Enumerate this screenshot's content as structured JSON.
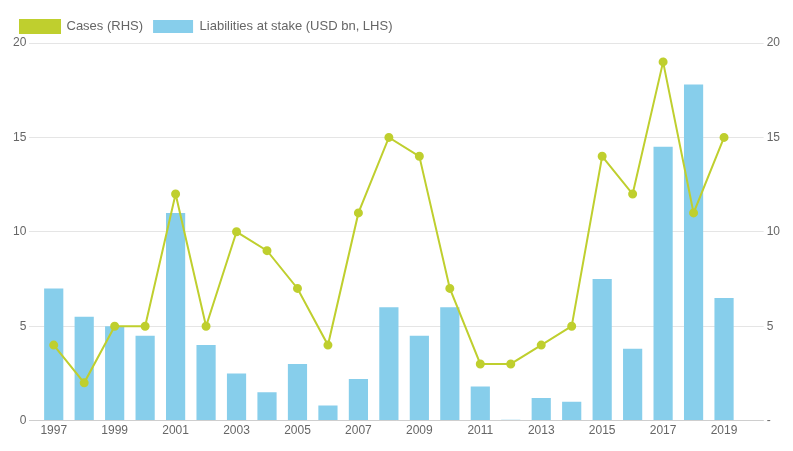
{
  "chart_data": {
    "type": "bar",
    "x": [
      1997,
      1998,
      1999,
      2000,
      2001,
      2002,
      2003,
      2004,
      2005,
      2006,
      2007,
      2008,
      2009,
      2010,
      2011,
      2012,
      2013,
      2014,
      2015,
      2016,
      2017,
      2018,
      2019
    ],
    "series": [
      {
        "name": "Liabilities at stake (USD bn, LHS)",
        "type": "bar",
        "color": "#87CEEB",
        "values": [
          7.0,
          5.5,
          5.0,
          4.5,
          11.0,
          4.0,
          2.5,
          1.5,
          3.0,
          0.8,
          2.2,
          6.0,
          4.5,
          6.0,
          1.8,
          0.05,
          1.2,
          1.0,
          7.5,
          3.8,
          14.5,
          17.8,
          6.5
        ]
      },
      {
        "name": "Cases (RHS)",
        "type": "line",
        "color": "#BFCF2E",
        "marker": "circle",
        "axis": "y2",
        "values": [
          4,
          2,
          5,
          5,
          12,
          5,
          10,
          9,
          7,
          4,
          11,
          15,
          14,
          7,
          3,
          3,
          4,
          5,
          14,
          12,
          19,
          11,
          15
        ]
      }
    ],
    "xlim": [
      1996.2,
      2020.3
    ],
    "xticks": [
      1997,
      1999,
      2001,
      2003,
      2005,
      2007,
      2009,
      2011,
      2013,
      2015,
      2017,
      2019
    ],
    "ylim": [
      0,
      20
    ],
    "yticks": [
      0,
      5,
      10,
      15,
      20
    ],
    "y2lim": [
      0,
      20
    ],
    "y2ticks": [
      {
        "value": 0,
        "label": "-"
      },
      5,
      10,
      15,
      20
    ],
    "grid": "y",
    "legend": "upper left"
  }
}
